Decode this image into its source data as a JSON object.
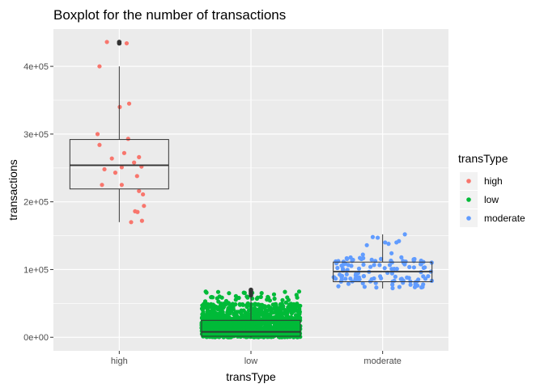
{
  "chart_data": {
    "type": "boxplot",
    "title": "Boxplot for the number of transactions",
    "xlabel": "transType",
    "ylabel": "transactions",
    "categories": [
      "high",
      "low",
      "moderate"
    ],
    "y_ticks": [
      0,
      100000,
      200000,
      300000,
      400000
    ],
    "y_tick_labels": [
      "0e+00",
      "1e+05",
      "2e+05",
      "3e+05",
      "4e+05"
    ],
    "ylim": [
      -20000,
      455000
    ],
    "grid": true,
    "legend": {
      "title": "transType",
      "position": "right",
      "entries": [
        {
          "label": "high",
          "color": "#F8766D"
        },
        {
          "label": "low",
          "color": "#00BA38"
        },
        {
          "label": "moderate",
          "color": "#619CFF"
        }
      ]
    },
    "boxes": [
      {
        "category": "high",
        "q1": 219000,
        "median": 254000,
        "q3": 292000,
        "whisker_low": 170000,
        "whisker_high": 400000,
        "outliers": [
          434000,
          436000
        ]
      },
      {
        "category": "low",
        "q1": 1500,
        "median": 8000,
        "q3": 25000,
        "whisker_low": 0,
        "whisker_high": 60000,
        "outliers": [
          62000,
          65000,
          68000,
          70000
        ]
      },
      {
        "category": "moderate",
        "q1": 82000,
        "median": 97000,
        "q3": 111000,
        "whisker_low": 72000,
        "whisker_high": 152000,
        "outliers": []
      }
    ],
    "points": {
      "high": [
        {
          "x": -0.4,
          "y": 284000
        },
        {
          "x": -0.25,
          "y": 436000
        },
        {
          "x": 0.15,
          "y": 434000
        },
        {
          "x": -0.35,
          "y": 225000
        },
        {
          "x": -0.3,
          "y": 248000
        },
        {
          "x": -0.15,
          "y": 264000
        },
        {
          "x": -0.08,
          "y": 243000
        },
        {
          "x": 0.05,
          "y": 251000
        },
        {
          "x": 0.1,
          "y": 272000
        },
        {
          "x": 0.18,
          "y": 293000
        },
        {
          "x": 0.2,
          "y": 345000
        },
        {
          "x": 0.01,
          "y": 340000
        },
        {
          "x": 0.3,
          "y": 258000
        },
        {
          "x": 0.4,
          "y": 266000
        },
        {
          "x": 0.45,
          "y": 252000
        },
        {
          "x": 0.36,
          "y": 238000
        },
        {
          "x": 0.4,
          "y": 216000
        },
        {
          "x": 0.5,
          "y": 194000
        },
        {
          "x": 0.32,
          "y": 186000
        },
        {
          "x": 0.37,
          "y": 185000
        },
        {
          "x": 0.24,
          "y": 170000
        },
        {
          "x": 0.46,
          "y": 172000
        },
        {
          "x": 0.05,
          "y": 225000
        },
        {
          "x": 0.48,
          "y": 211000
        },
        {
          "x": -0.44,
          "y": 300000
        },
        {
          "x": -0.4,
          "y": 400000
        }
      ],
      "moderate": [
        {
          "x": -0.4,
          "y": 122000
        },
        {
          "x": -0.32,
          "y": 136000
        },
        {
          "x": -0.2,
          "y": 148000
        },
        {
          "x": -0.1,
          "y": 147000
        },
        {
          "x": 0.05,
          "y": 140000
        },
        {
          "x": 0.12,
          "y": 138000
        },
        {
          "x": 0.18,
          "y": 124000
        },
        {
          "x": 0.28,
          "y": 140000
        },
        {
          "x": 0.33,
          "y": 142000
        },
        {
          "x": 0.45,
          "y": 152000
        },
        {
          "x": 0.38,
          "y": 118000
        },
        {
          "x": -0.05,
          "y": 90000
        }
      ]
    }
  }
}
